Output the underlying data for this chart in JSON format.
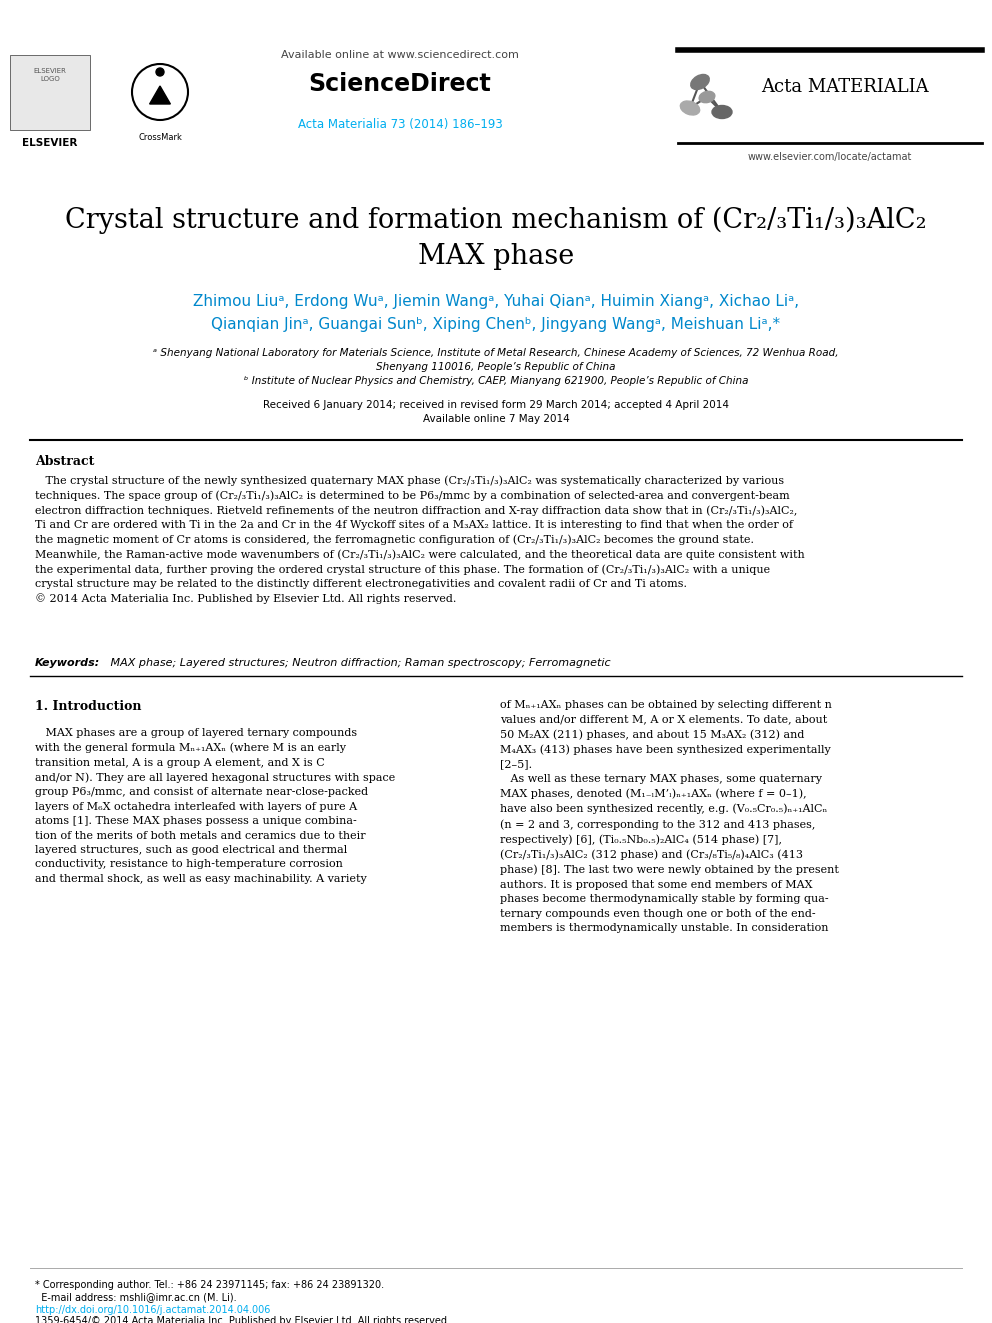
{
  "bg_color": "#ffffff",
  "header": {
    "elsevier_text": "ELSEVIER",
    "crossmark_text": "CrossMark",
    "available_online_text": "Available online at www.sciencedirect.com",
    "sciencedirect_text": "ScienceDirect",
    "journal_ref": "Acta Materialia 73 (2014) 186–193",
    "acta_materialia_text": "Acta MATERIALIA",
    "website_text": "www.elsevier.com/locate/actamat"
  },
  "title_line1": "Crystal structure and formation mechanism of (Cr₂/₃Ti₁/₃)₃AlC₂",
  "title_line2": "MAX phase",
  "authors": "Zhimou Liuᵃ, Erdong Wuᵃ, Jiemin Wangᵃ, Yuhai Qianᵃ, Huimin Xiangᵃ, Xichao Liᵃ,",
  "authors2": "Qianqian Jinᵃ, Guangai Sunᵇ, Xiping Chenᵇ, Jingyang Wangᵃ, Meishuan Liᵃ,*",
  "affiliation_a": "ᵃ Shenyang National Laboratory for Materials Science, Institute of Metal Research, Chinese Academy of Sciences, 72 Wenhua Road,",
  "affiliation_a2": "Shenyang 110016, People’s Republic of China",
  "affiliation_b": "ᵇ Institute of Nuclear Physics and Chemistry, CAEP, Mianyang 621900, People’s Republic of China",
  "received_text": "Received 6 January 2014; received in revised form 29 March 2014; accepted 4 April 2014",
  "available_text": "Available online 7 May 2014",
  "abstract_label": "Abstract",
  "keywords_label": "Keywords:",
  "keywords_text": " MAX phase; Layered structures; Neutron diffraction; Raman spectroscopy; Ferromagnetic",
  "section1_label": "1. Introduction",
  "footer_note1": "* Corresponding author. Tel.: +86 24 23971145; fax: +86 24 23891320.",
  "footer_note2": "  E-mail address: mshli@imr.ac.cn (M. Li).",
  "doi_text": "http://dx.doi.org/10.1016/j.actamat.2014.04.006",
  "copyright_text": "1359-6454/© 2014 Acta Materialia Inc. Published by Elsevier Ltd. All rights reserved.",
  "colors": {
    "black": "#000000",
    "cyan": "#00aeef",
    "dark_cyan": "#0088cc",
    "gray": "#555555",
    "light_gray": "#888888",
    "header_line": "#000000"
  }
}
